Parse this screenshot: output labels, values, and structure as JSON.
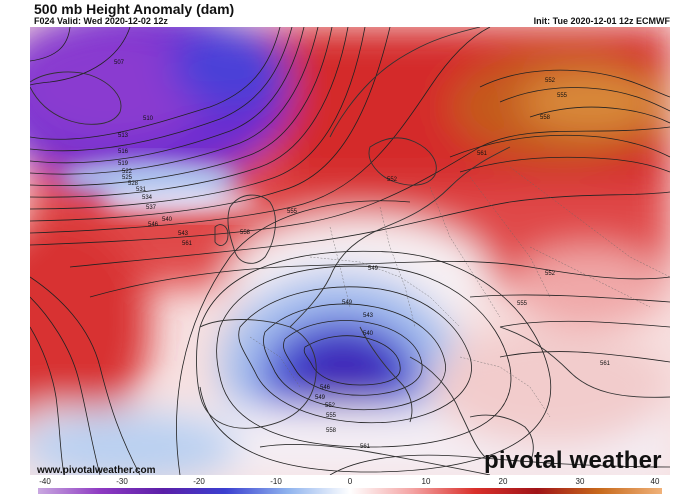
{
  "header": {
    "title": "500 mb Height Anomaly (dam)",
    "valid": "F024 Valid: Wed 2020-12-02 12z",
    "init": "Init: Tue 2020-12-01 12z ECMWF"
  },
  "footer": {
    "website": "www.pivotalweather.com",
    "brand": "pivotal weather"
  },
  "colorbar": {
    "ticks": [
      "-40",
      "-30",
      "-20",
      "-10",
      "0",
      "10",
      "20",
      "30",
      "40"
    ],
    "stops": [
      "#c9a8e0",
      "#8e3ac2",
      "#5b1fa8",
      "#3b3fd0",
      "#8fb3ee",
      "#ffffff",
      "#f4a3a3",
      "#d9302b",
      "#a01418",
      "#c86a1c",
      "#f0b27a"
    ]
  },
  "contour_labels": [
    "507",
    "510",
    "513",
    "516",
    "519",
    "522",
    "525",
    "528",
    "531",
    "534",
    "537",
    "540",
    "543",
    "546",
    "549",
    "552",
    "555",
    "558",
    "561",
    "552",
    "555",
    "558",
    "561",
    "549",
    "549",
    "546",
    "543",
    "540",
    "543",
    "546",
    "549",
    "552",
    "555",
    "558",
    "561",
    "552",
    "555",
    "552",
    "555",
    "549",
    "552",
    "555",
    "561"
  ],
  "colors": {
    "negative_anomaly": "#3a2fc4",
    "positive_anomaly": "#d32222",
    "strong_positive": "#c4631c",
    "neutral": "#ffffff"
  }
}
